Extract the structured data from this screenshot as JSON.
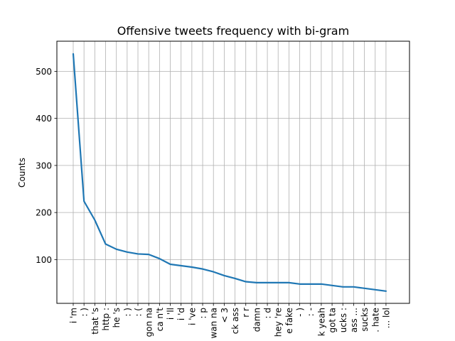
{
  "chart_data": {
    "type": "line",
    "title": "Offensive tweets frequency with bi-gram",
    "xlabel": "",
    "ylabel": "Counts",
    "categories": [
      "i 'm",
      ": )",
      "that 's",
      "http :",
      "he 's",
      ": )",
      ": (",
      "gon na",
      "ca n't",
      "i 'll",
      "i 'd",
      "i 've",
      ": p",
      "wan na",
      "< 3",
      "ck ass",
      "r r",
      "damn",
      ": d",
      "hey 're",
      "e fake",
      "- )",
      ": -",
      "k yeah",
      "got ta",
      "ucks :",
      "ass ...",
      "sucks",
      ". hate",
      "... lol"
    ],
    "series": [
      {
        "name": "",
        "values": [
          537,
          224,
          184,
          133,
          122,
          116,
          112,
          111,
          102,
          90,
          87,
          84,
          80,
          74,
          66,
          60,
          53,
          51,
          51,
          51,
          51,
          48,
          48,
          48,
          45,
          42,
          42,
          39,
          36,
          33
        ]
      }
    ],
    "ylim": [
      7,
      564
    ],
    "yticks": [
      100,
      200,
      300,
      400,
      500
    ],
    "grid": true,
    "legend": "none",
    "colors": {
      "line": "#1f77b4",
      "grid": "#b0b0b0",
      "axes": "#000000"
    }
  }
}
